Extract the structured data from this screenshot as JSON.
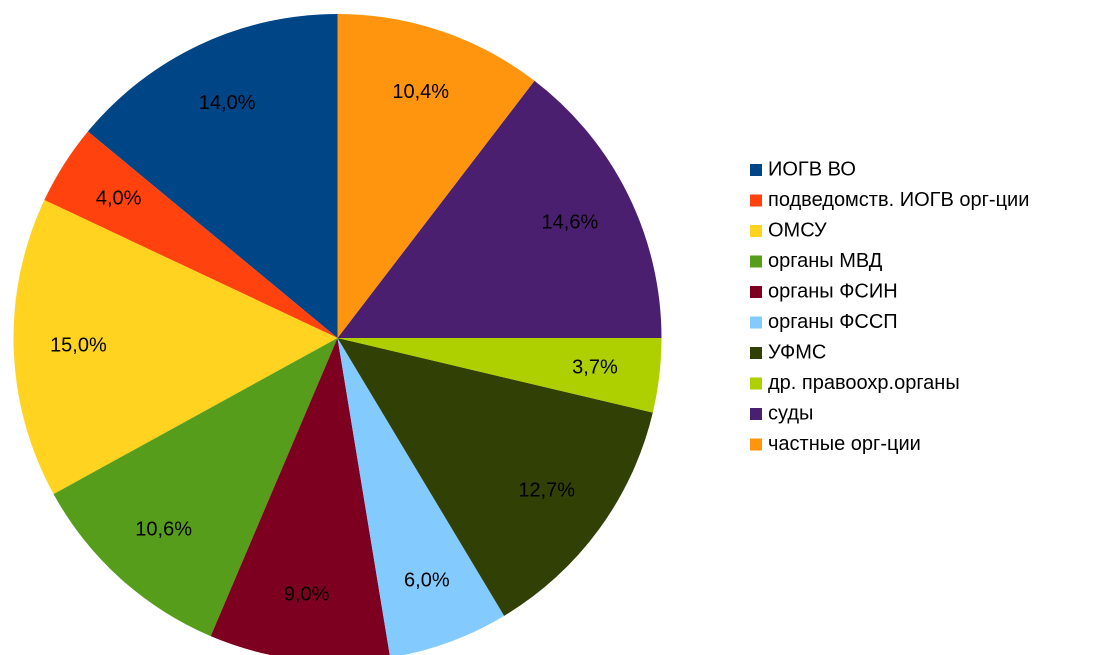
{
  "chart_data": {
    "type": "pie",
    "categories": [
      "ИОГВ ВО",
      "подведомств. ИОГВ орг-ции",
      "ОМСУ",
      "органы МВД",
      "органы ФСИН",
      "органы ФССП",
      "УФМС",
      "др. правоохр.органы",
      "суды",
      "частные орг-ции"
    ],
    "values": [
      14.0,
      4.0,
      15.0,
      10.6,
      9.0,
      6.0,
      12.7,
      3.7,
      14.6,
      10.4
    ],
    "value_labels": [
      "14,0%",
      "4,0%",
      "15,0%",
      "10,6%",
      "9,0%",
      "6,0%",
      "12,7%",
      "3,7%",
      "14,6%",
      "10,4%"
    ],
    "colors": [
      "#004586",
      "#ff420e",
      "#ffd320",
      "#579d1c",
      "#7e0021",
      "#83caff",
      "#314004",
      "#aecf00",
      "#4b1f6f",
      "#ff950e"
    ],
    "legend": "right"
  }
}
